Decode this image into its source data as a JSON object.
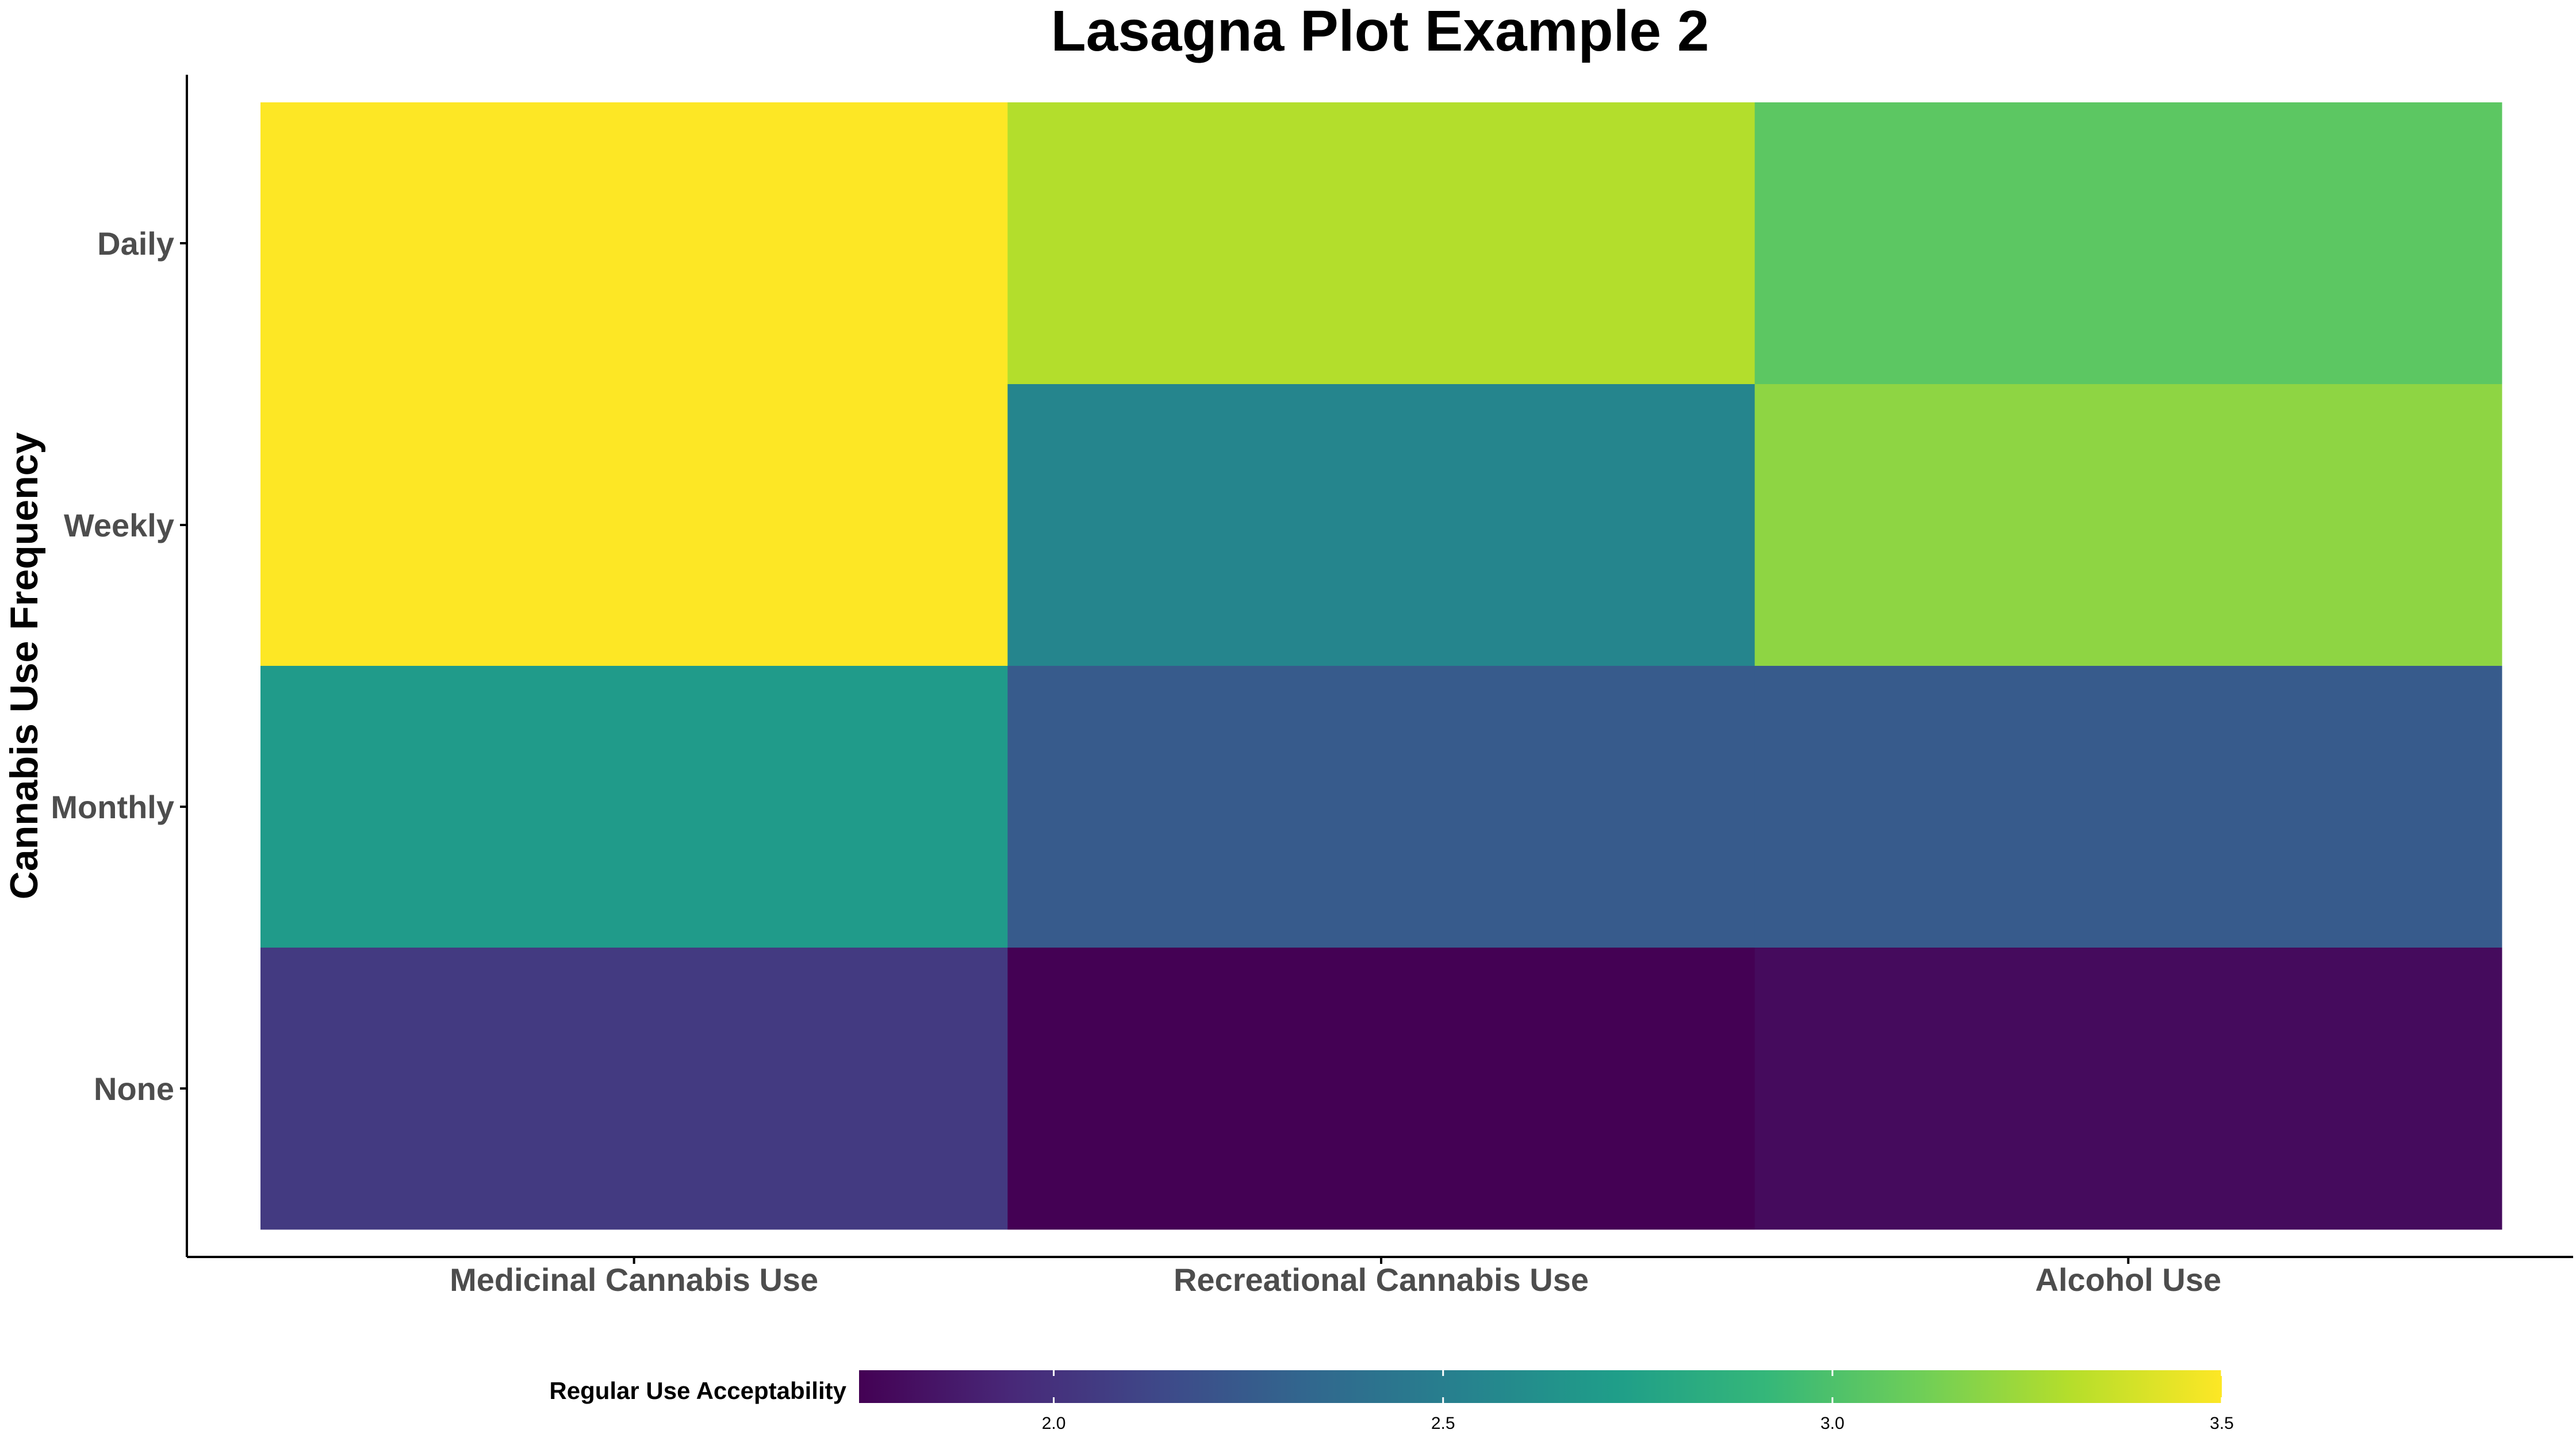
{
  "chart_data": {
    "type": "heatmap",
    "title": "Lasagna Plot Example 2",
    "xlabel": "",
    "ylabel": "Cannabis Use Frequency",
    "x_categories": [
      "Medicinal Cannabis Use",
      "Recreational Cannabis Use",
      "Alcohol Use"
    ],
    "y_categories": [
      "Daily",
      "Weekly",
      "Monthly",
      "None"
    ],
    "values": [
      [
        3.5,
        3.3,
        3.05
      ],
      [
        3.5,
        2.55,
        3.2
      ],
      [
        2.7,
        2.25,
        2.25
      ],
      [
        2.05,
        1.75,
        1.8
      ]
    ],
    "legend": {
      "title": "Regular Use Acceptability",
      "position": "bottom",
      "range": [
        1.75,
        3.5
      ],
      "ticks": [
        2.0,
        2.5,
        3.0,
        3.5
      ],
      "tick_labels": [
        "2.0",
        "2.5",
        "3.0",
        "3.5"
      ]
    },
    "colormap": [
      "#440154",
      "#482878",
      "#3e4989",
      "#31688e",
      "#26828e",
      "#1f9e89",
      "#35b779",
      "#6ece58",
      "#b5de2b",
      "#fde725"
    ],
    "grid": false
  }
}
